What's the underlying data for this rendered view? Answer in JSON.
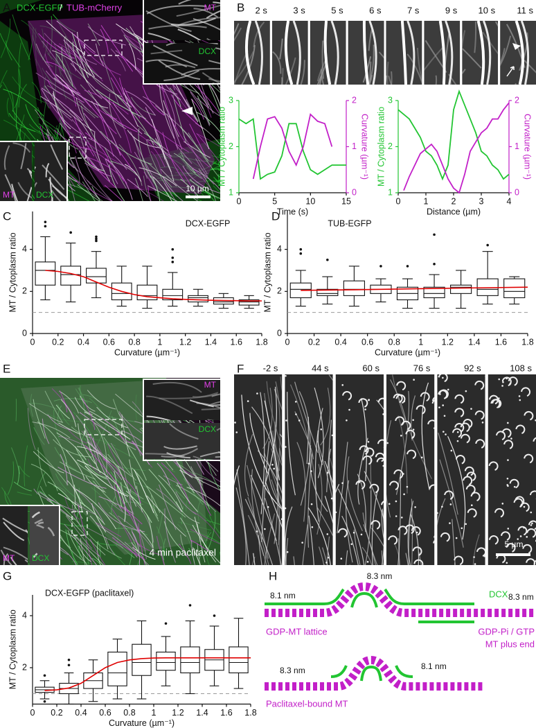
{
  "panel_labels": [
    "A",
    "B",
    "C",
    "D",
    "E",
    "F",
    "G",
    "H"
  ],
  "panel_a": {
    "title_left": "DCX-EGFP",
    "title_sep": "/",
    "title_right": "TUB-mCherry",
    "inset_top": [
      "MT",
      "DCX"
    ],
    "inset_bottom": [
      "MT",
      "DCX"
    ],
    "scale_bar": "10 µm"
  },
  "panel_b": {
    "frames": [
      "2 s",
      "3 s",
      "5 s",
      "6 s",
      "7 s",
      "9 s",
      "10 s",
      "11 s"
    ]
  },
  "panel_e": {
    "inset_top": [
      "MT",
      "DCX"
    ],
    "inset_bottom": [
      "MT",
      "DCX"
    ],
    "condition": "4 min paclitaxel"
  },
  "panel_f": {
    "frames": [
      "-2 s",
      "44 s",
      "60 s",
      "76 s",
      "92 s",
      "108 s"
    ],
    "scale_bar": "5 µm"
  },
  "panel_h": {
    "top_peak": "8.3 nm",
    "top_left": "8.1 nm",
    "top_dcx": "DCX",
    "top_right": "8.3 nm",
    "lattice": "GDP-MT lattice",
    "plus_end_1": "GDP-Pi / GTP",
    "plus_end_2": "MT plus end",
    "bottom_left": "8.3 nm",
    "bottom_right": "8.1 nm",
    "bottom_label": "Paclitaxel-bound MT"
  },
  "chart_data": [
    {
      "type": "line",
      "xlabel": "Time (s)",
      "ylabel": "MT / Cytoplasm ratio",
      "y2label": "Curvature (µm⁻¹)",
      "x": [
        0,
        1,
        2,
        3,
        4,
        5,
        6,
        7,
        8,
        9,
        10,
        11,
        12,
        13,
        14,
        15
      ],
      "xlim": [
        0,
        15
      ],
      "xticks": [
        0,
        5,
        10,
        15
      ],
      "ylim": [
        1,
        3
      ],
      "yticks": [
        1,
        2,
        3
      ],
      "y2lim": [
        0,
        2
      ],
      "y2ticks": [
        0,
        1,
        2
      ],
      "series": [
        {
          "color": "#22c532",
          "values": [
            2.6,
            2.5,
            2.6,
            1.3,
            1.4,
            1.45,
            1.8,
            2.5,
            2.5,
            1.9,
            1.5,
            1.4,
            1.5,
            1.6,
            1.6,
            1.6
          ]
        },
        {
          "color": "#c21fc8",
          "axis": "y2",
          "values": [
            null,
            null,
            0.3,
            1.0,
            1.6,
            1.65,
            1.4,
            0.9,
            0.6,
            1.0,
            1.7,
            1.55,
            1.5,
            1.0,
            null,
            null
          ]
        }
      ]
    },
    {
      "type": "line",
      "xlabel": "Distance (µm)",
      "ylabel": "MT / Cytoplasm ratio",
      "y2label": "Curvature (µm⁻¹)",
      "x": [
        0,
        0.2,
        0.4,
        0.6,
        0.8,
        1,
        1.2,
        1.4,
        1.6,
        1.8,
        2,
        2.2,
        2.4,
        2.6,
        2.8,
        3,
        3.2,
        3.4,
        3.6,
        3.8,
        4
      ],
      "xlim": [
        0,
        4
      ],
      "xticks": [
        0,
        1,
        2,
        3,
        4
      ],
      "ylim": [
        1,
        3
      ],
      "yticks": [
        1,
        2,
        3
      ],
      "y2lim": [
        0,
        2
      ],
      "y2ticks": [
        0,
        1,
        2
      ],
      "series": [
        {
          "color": "#22c532",
          "values": [
            2.8,
            2.7,
            2.6,
            2.4,
            2.2,
            1.9,
            1.8,
            1.6,
            1.3,
            1.6,
            2.8,
            3.2,
            2.9,
            2.6,
            2.3,
            1.9,
            1.8,
            1.6,
            1.5,
            1.3,
            1.4
          ]
        },
        {
          "color": "#c21fc8",
          "axis": "y2",
          "values": [
            null,
            0.05,
            0.35,
            0.6,
            0.85,
            0.95,
            1.05,
            0.9,
            0.6,
            0.3,
            0.1,
            0.0,
            0.4,
            0.9,
            1.1,
            1.3,
            1.4,
            1.6,
            1.6,
            1.8,
            1.95
          ]
        }
      ]
    },
    {
      "type": "box",
      "title": "DCX-EGFP",
      "xlabel": "Curvature (µm⁻¹)",
      "ylabel": "MT / Cytoplasm ratio",
      "xlim": [
        0,
        1.8
      ],
      "xticks": [
        0,
        0.2,
        0.4,
        0.6,
        0.8,
        1,
        1.2,
        1.4,
        1.6,
        1.8
      ],
      "ylim": [
        0,
        5.8
      ],
      "yticks": [
        0,
        2,
        4
      ],
      "refline": 1,
      "boxes": [
        {
          "x": 0.1,
          "whislo": 1.6,
          "q1": 2.3,
          "med": 3.0,
          "q3": 3.4,
          "whishi": 4.6,
          "fliers": [
            5.1,
            5.3
          ]
        },
        {
          "x": 0.3,
          "whislo": 1.5,
          "q1": 2.3,
          "med": 2.8,
          "q3": 3.2,
          "whishi": 4.3,
          "fliers": [
            4.8
          ]
        },
        {
          "x": 0.5,
          "whislo": 1.7,
          "q1": 2.4,
          "med": 2.7,
          "q3": 3.1,
          "whishi": 3.9,
          "fliers": [
            4.4,
            4.5,
            4.6
          ]
        },
        {
          "x": 0.7,
          "whislo": 1.3,
          "q1": 1.6,
          "med": 1.9,
          "q3": 2.4,
          "whishi": 3.2,
          "fliers": []
        },
        {
          "x": 0.9,
          "whislo": 1.2,
          "q1": 1.6,
          "med": 1.8,
          "q3": 2.3,
          "whishi": 3.2,
          "fliers": []
        },
        {
          "x": 1.1,
          "whislo": 1.3,
          "q1": 1.6,
          "med": 1.8,
          "q3": 2.1,
          "whishi": 2.9,
          "fliers": [
            3.4,
            3.6,
            4.0
          ]
        },
        {
          "x": 1.3,
          "whislo": 1.3,
          "q1": 1.5,
          "med": 1.7,
          "q3": 1.8,
          "whishi": 2.1,
          "fliers": []
        },
        {
          "x": 1.5,
          "whislo": 1.2,
          "q1": 1.4,
          "med": 1.5,
          "q3": 1.7,
          "whishi": 1.9,
          "fliers": []
        },
        {
          "x": 1.7,
          "whislo": 1.2,
          "q1": 1.35,
          "med": 1.5,
          "q3": 1.6,
          "whishi": 1.8,
          "fliers": []
        }
      ],
      "fit": {
        "color": "#e00000",
        "x": [
          0.1,
          0.2,
          0.3,
          0.4,
          0.5,
          0.6,
          0.7,
          0.8,
          0.9,
          1,
          1.1,
          1.2,
          1.3,
          1.4,
          1.5,
          1.6,
          1.7,
          1.8
        ],
        "values": [
          3.0,
          2.95,
          2.85,
          2.7,
          2.45,
          2.2,
          2.0,
          1.85,
          1.75,
          1.7,
          1.65,
          1.62,
          1.6,
          1.58,
          1.57,
          1.56,
          1.55,
          1.55
        ]
      }
    },
    {
      "type": "box",
      "title": "TUB-EGFP",
      "xlabel": "Curvature (µm⁻¹)",
      "ylabel": "MT / Cytoplasm ratio",
      "xlim": [
        0,
        1.8
      ],
      "xticks": [
        0,
        0.2,
        0.4,
        0.6,
        0.8,
        1,
        1.2,
        1.4,
        1.6,
        1.8
      ],
      "ylim": [
        0,
        5.8
      ],
      "yticks": [
        0,
        2,
        4
      ],
      "refline": 1,
      "boxes": [
        {
          "x": 0.1,
          "whislo": 1.3,
          "q1": 1.7,
          "med": 2.1,
          "q3": 2.4,
          "whishi": 3.0,
          "fliers": [
            3.8,
            4.0
          ]
        },
        {
          "x": 0.3,
          "whislo": 1.4,
          "q1": 1.8,
          "med": 1.9,
          "q3": 2.1,
          "whishi": 2.7,
          "fliers": [
            3.5
          ]
        },
        {
          "x": 0.5,
          "whislo": 1.3,
          "q1": 1.8,
          "med": 2.1,
          "q3": 2.5,
          "whishi": 3.2,
          "fliers": []
        },
        {
          "x": 0.7,
          "whislo": 1.5,
          "q1": 1.9,
          "med": 2.1,
          "q3": 2.3,
          "whishi": 2.6,
          "fliers": [
            3.2
          ]
        },
        {
          "x": 0.9,
          "whislo": 1.2,
          "q1": 1.6,
          "med": 1.9,
          "q3": 2.2,
          "whishi": 2.6,
          "fliers": [
            3.2
          ]
        },
        {
          "x": 1.1,
          "whislo": 1.2,
          "q1": 1.7,
          "med": 1.9,
          "q3": 2.2,
          "whishi": 2.8,
          "fliers": [
            3.3,
            4.7
          ]
        },
        {
          "x": 1.3,
          "whislo": 1.2,
          "q1": 1.9,
          "med": 2.2,
          "q3": 2.3,
          "whishi": 3.0,
          "fliers": []
        },
        {
          "x": 1.5,
          "whislo": 1.4,
          "q1": 1.8,
          "med": 2.1,
          "q3": 2.6,
          "whishi": 3.9,
          "fliers": [
            4.2
          ]
        },
        {
          "x": 1.7,
          "whislo": 1.4,
          "q1": 1.7,
          "med": 2.0,
          "q3": 2.6,
          "whishi": 2.7,
          "fliers": []
        }
      ],
      "fit": {
        "color": "#e00000",
        "x": [
          0.1,
          0.5,
          0.9,
          1.3,
          1.8
        ],
        "values": [
          2.05,
          2.08,
          2.12,
          2.16,
          2.2
        ]
      }
    },
    {
      "type": "box",
      "title": "DCX-EGFP (paclitaxel)",
      "xlabel": "Curvature (µm⁻¹)",
      "ylabel": "MT / Cytoplasm ratio",
      "xlim": [
        0,
        1.8
      ],
      "xticks": [
        0,
        0.2,
        0.4,
        0.6,
        0.8,
        1,
        1.2,
        1.4,
        1.6,
        1.8
      ],
      "ylim": [
        0.6,
        4.8
      ],
      "yticks": [
        2,
        4
      ],
      "refline": 1,
      "boxes": [
        {
          "x": 0.1,
          "whislo": 0.8,
          "q1": 1.05,
          "med": 1.15,
          "q3": 1.25,
          "whishi": 1.5,
          "fliers": [
            1.7,
            0.7
          ]
        },
        {
          "x": 0.3,
          "whislo": 0.6,
          "q1": 1.0,
          "med": 1.2,
          "q3": 1.4,
          "whishi": 1.8,
          "fliers": [
            2.1,
            2.3
          ]
        },
        {
          "x": 0.5,
          "whislo": 0.7,
          "q1": 1.2,
          "med": 1.5,
          "q3": 1.8,
          "whishi": 2.3,
          "fliers": []
        },
        {
          "x": 0.7,
          "whislo": 0.8,
          "q1": 1.3,
          "med": 1.8,
          "q3": 2.6,
          "whishi": 3.1,
          "fliers": []
        },
        {
          "x": 0.9,
          "whislo": 0.8,
          "q1": 1.7,
          "med": 2.2,
          "q3": 2.9,
          "whishi": 3.8,
          "fliers": []
        },
        {
          "x": 1.1,
          "whislo": 1.3,
          "q1": 1.9,
          "med": 2.2,
          "q3": 2.6,
          "whishi": 3.2,
          "fliers": [
            3.7
          ]
        },
        {
          "x": 1.3,
          "whislo": 1.0,
          "q1": 1.8,
          "med": 2.2,
          "q3": 2.8,
          "whishi": 3.8,
          "fliers": [
            4.4
          ]
        },
        {
          "x": 1.5,
          "whislo": 1.3,
          "q1": 1.9,
          "med": 2.3,
          "q3": 2.7,
          "whishi": 3.6,
          "fliers": [
            4.0
          ]
        },
        {
          "x": 1.7,
          "whislo": 1.2,
          "q1": 1.8,
          "med": 2.2,
          "q3": 2.8,
          "whishi": 3.9,
          "fliers": []
        }
      ],
      "fit": {
        "color": "#e00000",
        "x": [
          0.1,
          0.2,
          0.3,
          0.4,
          0.5,
          0.6,
          0.7,
          0.8,
          0.9,
          1,
          1.1,
          1.2,
          1.3,
          1.4,
          1.5,
          1.6,
          1.7,
          1.8
        ],
        "values": [
          1.12,
          1.15,
          1.22,
          1.4,
          1.7,
          2.0,
          2.2,
          2.3,
          2.35,
          2.37,
          2.38,
          2.38,
          2.38,
          2.38,
          2.38,
          2.38,
          2.38,
          2.38
        ]
      }
    }
  ]
}
